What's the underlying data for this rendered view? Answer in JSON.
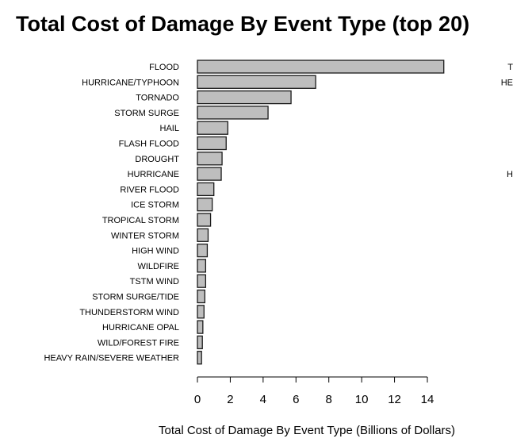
{
  "chart_data": {
    "type": "bar",
    "orientation": "horizontal",
    "title": "Total Cost of Damage By Event Type (top 20)",
    "xlabel": "Total Cost of Damage By Event Type (Billions of Dollars)",
    "xlim": [
      0,
      14
    ],
    "xticks": [
      0,
      2,
      4,
      6,
      8,
      10,
      12,
      14
    ],
    "categories": [
      "FLOOD",
      "HURRICANE/TYPHOON",
      "TORNADO",
      "STORM SURGE",
      "HAIL",
      "FLASH FLOOD",
      "DROUGHT",
      "HURRICANE",
      "RIVER FLOOD",
      "ICE STORM",
      "TROPICAL STORM",
      "WINTER STORM",
      "HIGH WIND",
      "WILDFIRE",
      "TSTM WIND",
      "STORM SURGE/TIDE",
      "THUNDERSTORM WIND",
      "HURRICANE OPAL",
      "WILD/FOREST FIRE",
      "HEAVY RAIN/SEVERE WEATHER"
    ],
    "values": [
      15.0,
      7.2,
      5.7,
      4.3,
      1.85,
      1.75,
      1.5,
      1.45,
      1.0,
      0.9,
      0.8,
      0.65,
      0.6,
      0.5,
      0.5,
      0.45,
      0.4,
      0.33,
      0.3,
      0.25
    ],
    "grid": false,
    "bar_color": "#bebebe",
    "bar_edge_color": "#1a1a1a",
    "clipped_right_labels": [
      "T",
      "HE",
      "H"
    ]
  }
}
